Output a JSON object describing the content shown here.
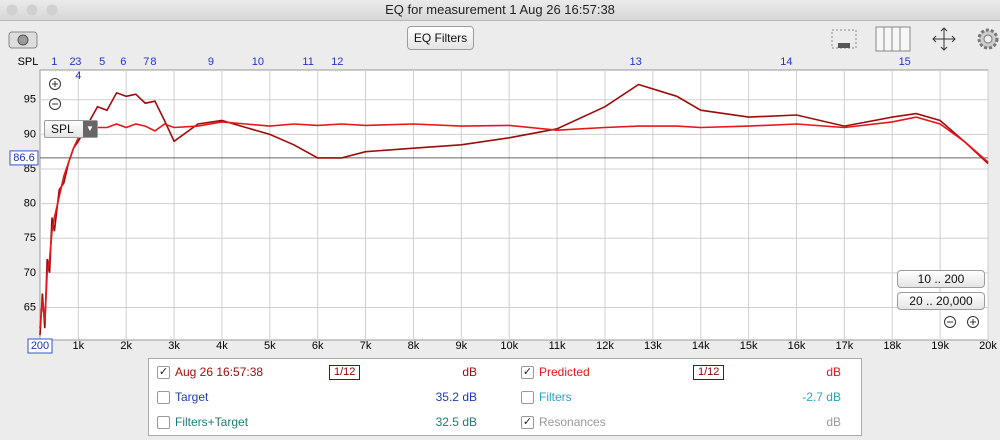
{
  "window_title": "EQ for measurement 1 Aug 26 16:57:38",
  "toolbar": {
    "eq_button": "EQ Filters"
  },
  "chart_data": {
    "type": "line",
    "y_axis_label": "SPL",
    "dropdown": "SPL",
    "x": [
      200,
      250,
      300,
      350,
      400,
      450,
      500,
      600,
      700,
      800,
      900,
      1000,
      1200,
      1400,
      1600,
      1800,
      2000,
      2200,
      2400,
      2600,
      2800,
      3000,
      3500,
      4000,
      4500,
      5000,
      5500,
      6000,
      6500,
      7000,
      8000,
      9000,
      10000,
      11000,
      12000,
      12700,
      13500,
      14000,
      15000,
      16000,
      17000,
      18000,
      18500,
      19000,
      19500,
      20000
    ],
    "series": [
      {
        "name": "Aug 26 16:57:38",
        "color": "#9e0b0b",
        "values": [
          61,
          67,
          62,
          72,
          70,
          78,
          76,
          82,
          83,
          86,
          88,
          89,
          91.5,
          94,
          93.5,
          96,
          95.5,
          95.8,
          94.5,
          94.8,
          92,
          89,
          91.5,
          92,
          91,
          90,
          88.5,
          86.6,
          86.6,
          87.5,
          88,
          88.5,
          89.5,
          90.8,
          94,
          97.2,
          95.5,
          93.5,
          92.5,
          92.8,
          91.2,
          92.5,
          93,
          92,
          89,
          85.8
        ]
      },
      {
        "name": "Predicted",
        "color": "#e8151b",
        "values": [
          62,
          66,
          63,
          70,
          72,
          76,
          78,
          81,
          84,
          86,
          88,
          89.5,
          90.5,
          91,
          91,
          91.5,
          91,
          91.5,
          91.2,
          90.5,
          91.5,
          91,
          91.2,
          91.8,
          91.5,
          91.2,
          91.5,
          91.3,
          91.5,
          91.3,
          91.5,
          91.2,
          91.3,
          90.6,
          91,
          91.2,
          91.2,
          91,
          91.2,
          91.5,
          91,
          91.8,
          92.5,
          91.5,
          89,
          86
        ]
      }
    ],
    "xlim": [
      200,
      20000
    ],
    "ylim": [
      60.3,
      99.3
    ],
    "xticks": [
      {
        "value": 1000,
        "label": "1k"
      },
      {
        "value": 2000,
        "label": "2k"
      },
      {
        "value": 3000,
        "label": "3k"
      },
      {
        "value": 4000,
        "label": "4k"
      },
      {
        "value": 5000,
        "label": "5k"
      },
      {
        "value": 6000,
        "label": "6k"
      },
      {
        "value": 7000,
        "label": "7k"
      },
      {
        "value": 8000,
        "label": "8k"
      },
      {
        "value": 9000,
        "label": "9k"
      },
      {
        "value": 10000,
        "label": "10k"
      },
      {
        "value": 11000,
        "label": "11k"
      },
      {
        "value": 12000,
        "label": "12k"
      },
      {
        "value": 13000,
        "label": "13k"
      },
      {
        "value": 14000,
        "label": "14k"
      },
      {
        "value": 15000,
        "label": "15k"
      },
      {
        "value": 16000,
        "label": "16k"
      },
      {
        "value": 17000,
        "label": "17k"
      },
      {
        "value": 18000,
        "label": "18k"
      },
      {
        "value": 19000,
        "label": "19k"
      },
      {
        "value": 20000,
        "label": "20k"
      }
    ],
    "yticks": [
      65,
      70,
      75,
      80,
      85,
      90,
      95
    ],
    "grid": true,
    "cursor": {
      "x": 200,
      "y": 86.6
    },
    "filter_markers": [
      {
        "label": "1",
        "freq": 500
      },
      {
        "label": "2",
        "freq": 880
      },
      {
        "label": "3",
        "freq": 1000
      },
      {
        "label": "4",
        "freq": 1000
      },
      {
        "label": "5",
        "freq": 1500
      },
      {
        "label": "6",
        "freq": 1940
      },
      {
        "label": "7",
        "freq": 2420
      },
      {
        "label": "8",
        "freq": 2570
      },
      {
        "label": "9",
        "freq": 3770
      },
      {
        "label": "10",
        "freq": 4750
      },
      {
        "label": "11",
        "freq": 5800
      },
      {
        "label": "12",
        "freq": 6410
      },
      {
        "label": "13",
        "freq": 12640
      },
      {
        "label": "14",
        "freq": 15790
      },
      {
        "label": "15",
        "freq": 18260
      }
    ],
    "range_buttons": [
      "10 .. 200",
      "20 .. 20,000"
    ]
  },
  "legend_panel": {
    "series_rows": [
      {
        "checked": true,
        "smoothing": "1/12",
        "unit": "dB"
      },
      {
        "checked": true,
        "smoothing": "1/12",
        "unit": "dB"
      }
    ],
    "items": [
      {
        "label": "Target",
        "value": "35.2 dB",
        "checked": false,
        "color": "#1f3bb3"
      },
      {
        "label": "Filters",
        "value": "-2.7 dB",
        "checked": false,
        "color": "#27a3c4"
      },
      {
        "label": "Filters+Target",
        "value": "32.5 dB",
        "checked": false,
        "color": "#1f7a74"
      },
      {
        "label": "Resonances",
        "value": "dB",
        "checked": true,
        "color": "#999999"
      }
    ]
  }
}
